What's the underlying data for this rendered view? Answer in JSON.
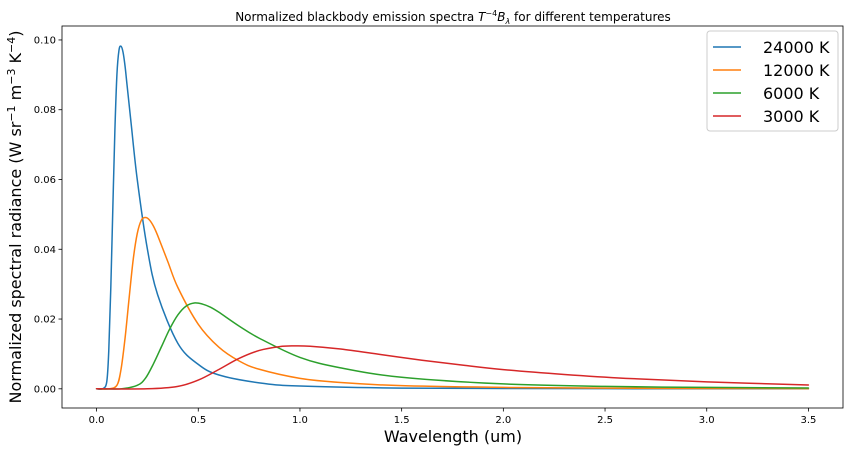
{
  "chart_data": {
    "type": "line",
    "title": {
      "prefix": "Normalized blackbody emission spectra ",
      "math_base": "T",
      "math_exp": "−4",
      "math_var": "B",
      "math_sub": "λ",
      "suffix": " for different temperatures"
    },
    "xlabel": "Wavelength (um)",
    "ylabel": {
      "prefix": "Normalized spectral radiance (W sr",
      "e1": "−1",
      "mid1": " m",
      "e2": "−3",
      "mid2": " K",
      "e3": "−4",
      "suffix": ")"
    },
    "xlim": [
      -0.17,
      3.67
    ],
    "ylim": [
      -0.0055,
      0.104
    ],
    "xticks": [
      0.0,
      0.5,
      1.0,
      1.5,
      2.0,
      2.5,
      3.0,
      3.5
    ],
    "xtick_labels": [
      "0.0",
      "0.5",
      "1.0",
      "1.5",
      "2.0",
      "2.5",
      "3.0",
      "3.5"
    ],
    "yticks": [
      0.0,
      0.02,
      0.04,
      0.06,
      0.08,
      0.1
    ],
    "ytick_labels": [
      "0.00",
      "0.02",
      "0.04",
      "0.06",
      "0.08",
      "0.10"
    ],
    "grid": false,
    "legend_position": "top-right",
    "series": [
      {
        "name": "24000 K",
        "color": "#1f77b4",
        "x": [
          0.0,
          0.03,
          0.05,
          0.06,
          0.07,
          0.08,
          0.09,
          0.1,
          0.11,
          0.12,
          0.13,
          0.14,
          0.15,
          0.17,
          0.2,
          0.25,
          0.3,
          0.4,
          0.5,
          0.6,
          0.8,
          1.0,
          1.5,
          2.0,
          2.5,
          3.0,
          3.5
        ],
        "y": [
          0.0,
          0.0,
          0.002,
          0.011,
          0.029,
          0.052,
          0.074,
          0.09,
          0.097,
          0.0982,
          0.0965,
          0.0925,
          0.087,
          0.076,
          0.06,
          0.04,
          0.027,
          0.013,
          0.007,
          0.004,
          0.0017,
          0.0008,
          0.0002,
          0.0001,
          4e-05,
          2e-05,
          1e-05
        ]
      },
      {
        "name": "12000 K",
        "color": "#ff7f0e",
        "x": [
          0.0,
          0.06,
          0.1,
          0.12,
          0.14,
          0.16,
          0.18,
          0.2,
          0.22,
          0.24,
          0.26,
          0.28,
          0.3,
          0.35,
          0.4,
          0.5,
          0.6,
          0.7,
          0.8,
          1.0,
          1.2,
          1.5,
          2.0,
          2.5,
          3.0,
          3.5
        ],
        "y": [
          0.0,
          0.0,
          0.001,
          0.0055,
          0.0145,
          0.026,
          0.037,
          0.0445,
          0.0483,
          0.0491,
          0.0484,
          0.0466,
          0.044,
          0.0365,
          0.029,
          0.0185,
          0.012,
          0.008,
          0.0056,
          0.003,
          0.0018,
          0.0009,
          0.0004,
          0.0002,
          0.0001,
          6e-05
        ]
      },
      {
        "name": "6000 K",
        "color": "#2ca02c",
        "x": [
          0.0,
          0.12,
          0.2,
          0.24,
          0.28,
          0.32,
          0.36,
          0.4,
          0.44,
          0.48,
          0.52,
          0.56,
          0.6,
          0.7,
          0.8,
          1.0,
          1.2,
          1.5,
          2.0,
          2.5,
          3.0,
          3.5
        ],
        "y": [
          0.0,
          0.0,
          0.001,
          0.003,
          0.0072,
          0.0122,
          0.0172,
          0.0212,
          0.0237,
          0.0246,
          0.0243,
          0.0234,
          0.022,
          0.018,
          0.0145,
          0.009,
          0.006,
          0.0033,
          0.0014,
          0.0007,
          0.0004,
          0.00025
        ]
      },
      {
        "name": "3000 K",
        "color": "#d62728",
        "x": [
          0.0,
          0.25,
          0.4,
          0.5,
          0.6,
          0.7,
          0.8,
          0.9,
          0.97,
          1.05,
          1.2,
          1.4,
          1.6,
          1.8,
          2.0,
          2.3,
          2.6,
          3.0,
          3.5
        ],
        "y": [
          0.0,
          0.0,
          0.0007,
          0.0025,
          0.0055,
          0.0087,
          0.011,
          0.0121,
          0.0123,
          0.0122,
          0.0114,
          0.0098,
          0.0082,
          0.0068,
          0.0055,
          0.0041,
          0.003,
          0.002,
          0.0011
        ]
      }
    ]
  }
}
